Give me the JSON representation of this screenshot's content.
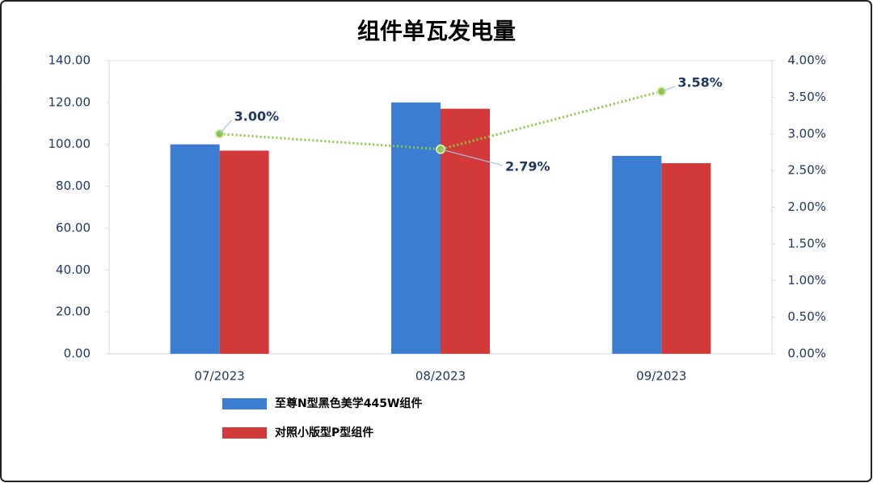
{
  "chart_data": {
    "type": "bar",
    "title": "组件单瓦发电量",
    "categories": [
      "07/2023",
      "08/2023",
      "09/2023"
    ],
    "series": [
      {
        "name": "至尊N型黑色美学445W组件",
        "color": "#3b7dd0",
        "values": [
          100,
          120,
          94.5
        ]
      },
      {
        "name": "对照小版型P型组件",
        "color": "#d23a3a",
        "values": [
          97,
          117,
          91
        ]
      },
      {
        "type": "line",
        "axis": "y2",
        "color": "#8cc63f",
        "values": [
          3.0,
          2.79,
          3.58
        ],
        "value_labels": [
          "3.00%",
          "2.79%",
          "3.58%"
        ]
      }
    ],
    "ylim": [
      0,
      140
    ],
    "yticks": [
      {
        "value": 0,
        "label": "0.00"
      },
      {
        "value": 20,
        "label": "20.00"
      },
      {
        "value": 40,
        "label": "40.00"
      },
      {
        "value": 60,
        "label": "60.00"
      },
      {
        "value": 80,
        "label": "80.00"
      },
      {
        "value": 100,
        "label": "100.00"
      },
      {
        "value": 120,
        "label": "120.00"
      },
      {
        "value": 140,
        "label": "140.00"
      }
    ],
    "y2lim": [
      0,
      4
    ],
    "y2ticks": [
      {
        "value": 0,
        "label": "0.00%"
      },
      {
        "value": 0.5,
        "label": "0.50%"
      },
      {
        "value": 1,
        "label": "1.00%"
      },
      {
        "value": 1.5,
        "label": "1.50%"
      },
      {
        "value": 2,
        "label": "2.00%"
      },
      {
        "value": 2.5,
        "label": "2.50%"
      },
      {
        "value": 3,
        "label": "3.00%"
      },
      {
        "value": 3.5,
        "label": "3.50%"
      },
      {
        "value": 4,
        "label": "4.00%"
      }
    ],
    "grid": false
  }
}
